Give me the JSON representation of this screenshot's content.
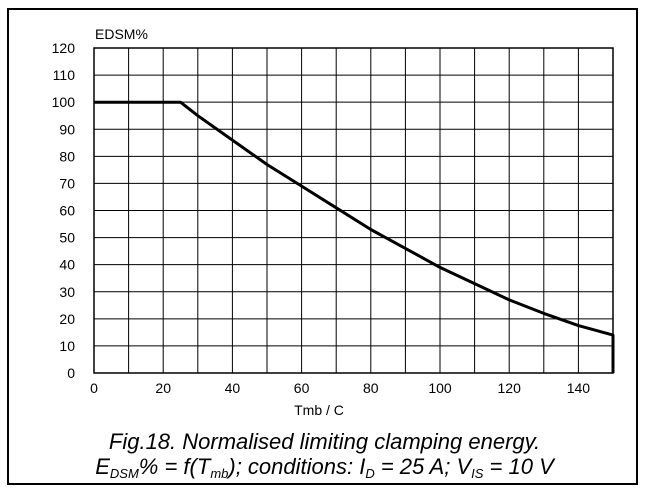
{
  "chart_data": {
    "type": "line",
    "ylabel": "EDSM%",
    "xlabel": "Tmb /  C",
    "xlim": [
      0,
      150
    ],
    "ylim": [
      0,
      120
    ],
    "x_ticks": [
      0,
      20,
      40,
      60,
      80,
      100,
      120,
      140
    ],
    "y_ticks": [
      0,
      10,
      20,
      30,
      40,
      50,
      60,
      70,
      80,
      90,
      100,
      110,
      120
    ],
    "grid": true,
    "series": [
      {
        "x": [
          0,
          25,
          30,
          40,
          50,
          60,
          70,
          80,
          90,
          100,
          110,
          120,
          130,
          140,
          150,
          150
        ],
        "values": [
          100,
          100,
          95,
          86,
          77,
          69,
          61,
          53,
          46,
          39,
          33,
          27,
          22,
          17.5,
          14,
          0
        ]
      }
    ]
  },
  "caption": {
    "line1": "Fig.18.   Normalised limiting clamping energy.",
    "line2_parts": [
      "E",
      "DSM",
      "% = f(T",
      "mb",
      "); conditions: I",
      "D",
      " = 25 A; V",
      "IS",
      " = 10 V"
    ]
  }
}
